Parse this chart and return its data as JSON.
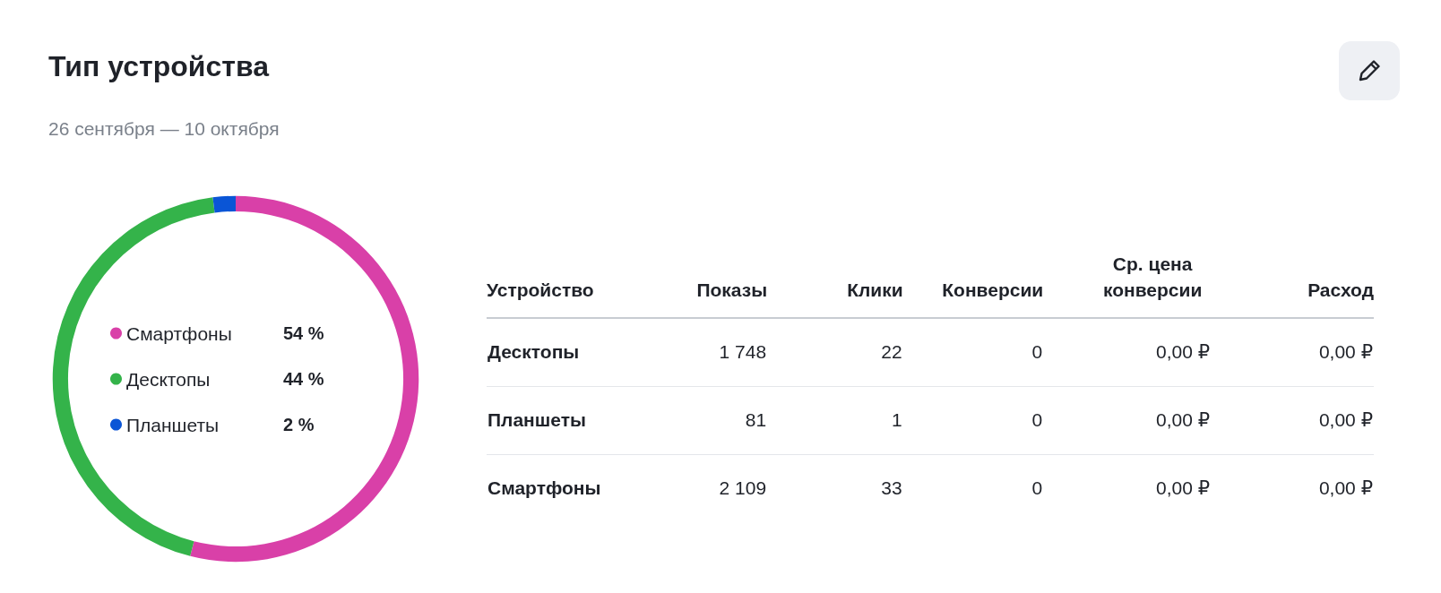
{
  "chart_data": [
    {
      "type": "donut",
      "title": "Тип устройства",
      "subtitle": "26 сентября — 10 октября",
      "categories": [
        "Смартфоны",
        "Десктопы",
        "Планшеты"
      ],
      "values": [
        54,
        44,
        2
      ],
      "colors": [
        "#d940a8",
        "#34b34a",
        "#0a55d6"
      ],
      "value_labels": [
        "54 %",
        "44 %",
        "2 %"
      ],
      "legend": "center"
    },
    {
      "type": "other",
      "categories": [
        "Устройство",
        "Показы",
        "Клики",
        "Конверсии",
        "Ср. цена конверсии",
        "Расход"
      ],
      "y_categories": [
        "Десктопы",
        "Планшеты",
        "Смартфоны"
      ],
      "cell_labels": [
        [
          "1 748",
          "22",
          "0",
          "0,00 ₽",
          "0,00 ₽"
        ],
        [
          "81",
          "1",
          "0",
          "0,00 ₽",
          "0,00 ₽"
        ],
        [
          "2 109",
          "33",
          "0",
          "0,00 ₽",
          "0,00 ₽"
        ]
      ]
    }
  ]
}
